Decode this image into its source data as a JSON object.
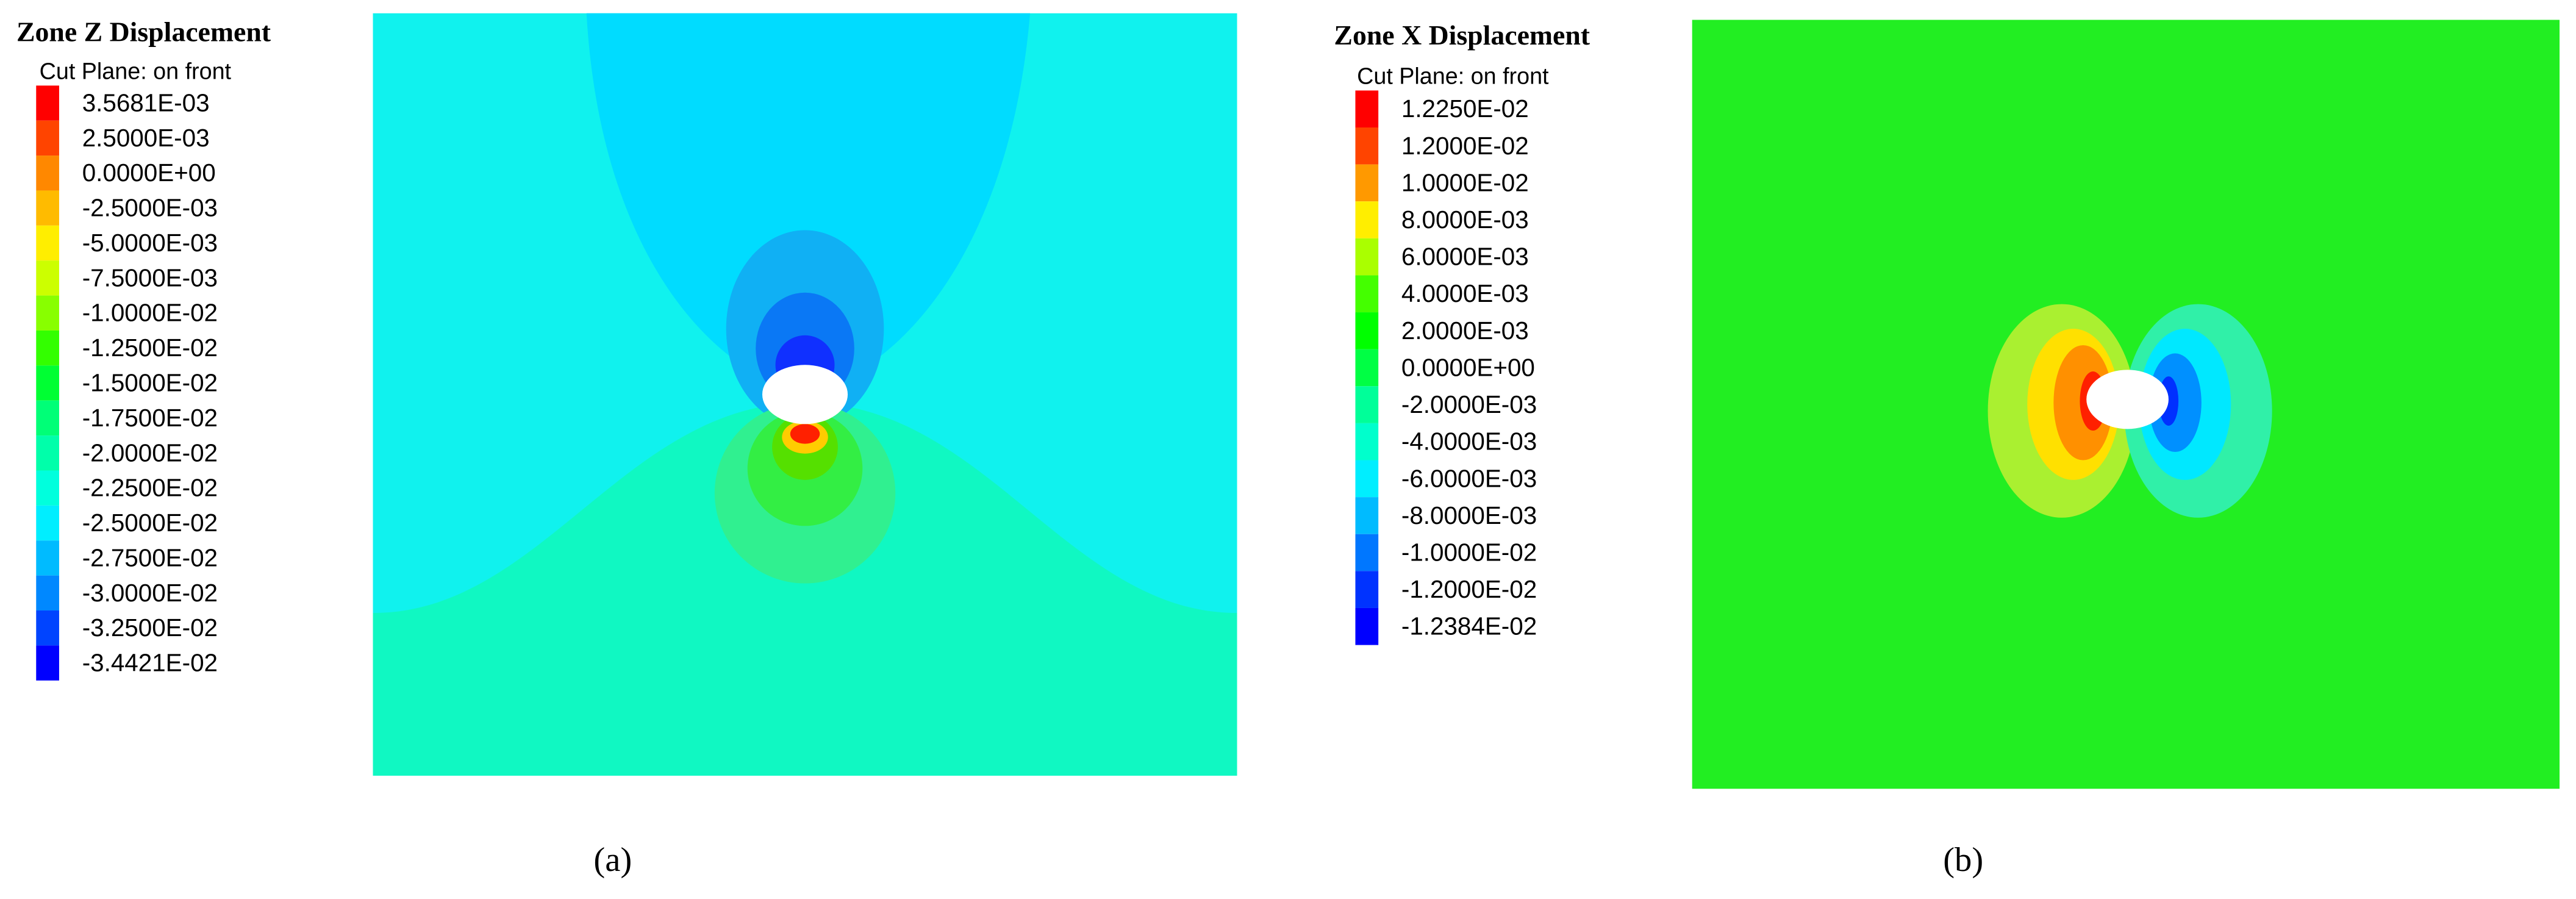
{
  "panels": [
    {
      "title": "Zone Z Displacement",
      "subtitle": "Cut Plane: on front",
      "legend": [
        "3.5681E-03",
        "2.5000E-03",
        "0.0000E+00",
        "-2.5000E-03",
        "-5.0000E-03",
        "-7.5000E-03",
        "-1.0000E-02",
        "-1.2500E-02",
        "-1.5000E-02",
        "-1.7500E-02",
        "-2.0000E-02",
        "-2.2500E-02",
        "-2.5000E-02",
        "-2.7500E-02",
        "-3.0000E-02",
        "-3.2500E-02",
        "-3.4421E-02"
      ],
      "legend_colors": [
        "#ff0000",
        "#ff4400",
        "#ff8800",
        "#ffbb00",
        "#ffee00",
        "#ccff00",
        "#88ff00",
        "#33ff00",
        "#00ff33",
        "#00ff77",
        "#00ffaa",
        "#00ffdd",
        "#00eeff",
        "#00bbff",
        "#0088ff",
        "#0044ff",
        "#0000ff"
      ],
      "caption": "(a)"
    },
    {
      "title": "Zone X Displacement",
      "subtitle": "Cut Plane: on front",
      "legend": [
        "1.2250E-02",
        "1.2000E-02",
        "1.0000E-02",
        "8.0000E-03",
        "6.0000E-03",
        "4.0000E-03",
        "2.0000E-03",
        "0.0000E+00",
        "-2.0000E-03",
        "-4.0000E-03",
        "-6.0000E-03",
        "-8.0000E-03",
        "-1.0000E-02",
        "-1.2000E-02",
        "-1.2384E-02"
      ],
      "legend_colors": [
        "#ff0000",
        "#ff4400",
        "#ff9900",
        "#ffee00",
        "#aaff00",
        "#44ff00",
        "#00ff00",
        "#00ff44",
        "#00ff99",
        "#00ffcc",
        "#00eeff",
        "#00bbff",
        "#0077ff",
        "#0033ff",
        "#0000ff"
      ],
      "caption": "(b)"
    }
  ]
}
